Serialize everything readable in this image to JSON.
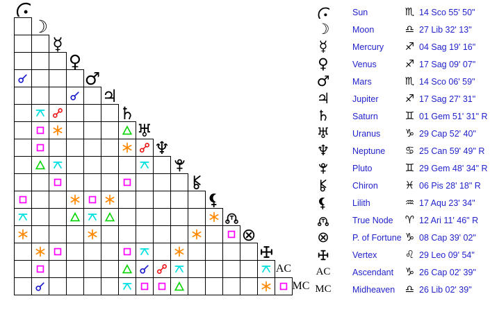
{
  "chart_data": {
    "type": "table",
    "title": "Astrological aspect grid (aspectarian) with planetary positions",
    "layout": "lower-triangular aspect matrix; rows/columns ordered as planets list; diagonal shows planet glyphs",
    "planets": [
      {
        "name": "Sun",
        "glyph_type": "svg",
        "glyph": "sun",
        "sign": "Sco",
        "sign_glyph": "♏",
        "position": "14 Sco 55' 50\""
      },
      {
        "name": "Moon",
        "glyph_type": "char",
        "glyph": "☽",
        "sign": "Lib",
        "sign_glyph": "♎",
        "position": "27 Lib 32' 13\""
      },
      {
        "name": "Mercury",
        "glyph_type": "char",
        "glyph": "☿",
        "sign": "Sag",
        "sign_glyph": "♐",
        "position": "04 Sag 19' 16\""
      },
      {
        "name": "Venus",
        "glyph_type": "char",
        "glyph": "♀",
        "sign": "Sag",
        "sign_glyph": "♐",
        "position": "17 Sag 09' 07\""
      },
      {
        "name": "Mars",
        "glyph_type": "char",
        "glyph": "♂",
        "sign": "Sco",
        "sign_glyph": "♏",
        "position": "14 Sco 06' 59\""
      },
      {
        "name": "Jupiter",
        "glyph_type": "char",
        "glyph": "♃",
        "sign": "Sag",
        "sign_glyph": "♐",
        "position": "17 Sag 27' 31\""
      },
      {
        "name": "Saturn",
        "glyph_type": "char",
        "glyph": "♄",
        "sign": "Gem",
        "sign_glyph": "♊",
        "position": "01 Gem 51' 31\" R"
      },
      {
        "name": "Uranus",
        "glyph_type": "char",
        "glyph": "♅",
        "sign": "Cap",
        "sign_glyph": "♑",
        "position": "29 Cap 52' 40\""
      },
      {
        "name": "Neptune",
        "glyph_type": "char",
        "glyph": "♆",
        "sign": "Can",
        "sign_glyph": "♋",
        "position": "25 Can 59' 49\" R"
      },
      {
        "name": "Pluto",
        "glyph_type": "svg",
        "glyph": "pluto",
        "sign": "Gem",
        "sign_glyph": "♊",
        "position": "29 Gem 48' 34\" R"
      },
      {
        "name": "Chiron",
        "glyph_type": "svg",
        "glyph": "chiron",
        "sign": "Pis",
        "sign_glyph": "♓",
        "position": "06 Pis 28' 18\" R"
      },
      {
        "name": "Lilith",
        "glyph_type": "svg",
        "glyph": "lilith",
        "sign": "Aqu",
        "sign_glyph": "♒",
        "position": "17 Aqu 23' 34\""
      },
      {
        "name": "True Node",
        "glyph_type": "svg",
        "glyph": "truenode",
        "sign": "Ari",
        "sign_glyph": "♈",
        "position": "12 Ari 11' 46\" R"
      },
      {
        "name": "P. of Fortune",
        "glyph_type": "char",
        "glyph": "⊗",
        "sign": "Cap",
        "sign_glyph": "♑",
        "position": "08 Cap 39' 02\""
      },
      {
        "name": "Vertex",
        "glyph_type": "svg",
        "glyph": "vertex",
        "sign": "Leo",
        "sign_glyph": "♌",
        "position": "29 Leo 09' 54\""
      },
      {
        "name": "Ascendant",
        "glyph_type": "text",
        "glyph": "AC",
        "sign": "Cap",
        "sign_glyph": "♑",
        "position": "26 Cap 02' 39\""
      },
      {
        "name": "Midheaven",
        "glyph_type": "text",
        "glyph": "MC",
        "sign": "Lib",
        "sign_glyph": "♎",
        "position": "26 Lib 02' 39\""
      }
    ],
    "aspect_types": {
      "conjunction": {
        "color": "#1a1acc"
      },
      "opposition": {
        "color": "#ee1111"
      },
      "square": {
        "color": "#ff00ff"
      },
      "trine": {
        "color": "#00d500"
      },
      "sextile": {
        "color": "#ff8800"
      },
      "quincunx": {
        "color": "#00e0e0"
      }
    },
    "aspects": [
      {
        "row": "Mars",
        "col": "Sun",
        "type": "conjunction"
      },
      {
        "row": "Jupiter",
        "col": "Venus",
        "type": "conjunction"
      },
      {
        "row": "Saturn",
        "col": "Moon",
        "type": "quincunx"
      },
      {
        "row": "Saturn",
        "col": "Mercury",
        "type": "opposition"
      },
      {
        "row": "Uranus",
        "col": "Moon",
        "type": "square"
      },
      {
        "row": "Uranus",
        "col": "Mercury",
        "type": "sextile"
      },
      {
        "row": "Uranus",
        "col": "Saturn",
        "type": "trine"
      },
      {
        "row": "Neptune",
        "col": "Moon",
        "type": "square"
      },
      {
        "row": "Neptune",
        "col": "Saturn",
        "type": "sextile"
      },
      {
        "row": "Neptune",
        "col": "Uranus",
        "type": "opposition"
      },
      {
        "row": "Pluto",
        "col": "Moon",
        "type": "trine"
      },
      {
        "row": "Pluto",
        "col": "Mercury",
        "type": "quincunx"
      },
      {
        "row": "Pluto",
        "col": "Uranus",
        "type": "quincunx"
      },
      {
        "row": "Chiron",
        "col": "Mercury",
        "type": "square"
      },
      {
        "row": "Chiron",
        "col": "Saturn",
        "type": "square"
      },
      {
        "row": "Lilith",
        "col": "Sun",
        "type": "square"
      },
      {
        "row": "Lilith",
        "col": "Venus",
        "type": "sextile"
      },
      {
        "row": "Lilith",
        "col": "Mars",
        "type": "square"
      },
      {
        "row": "Lilith",
        "col": "Jupiter",
        "type": "sextile"
      },
      {
        "row": "True Node",
        "col": "Sun",
        "type": "quincunx"
      },
      {
        "row": "True Node",
        "col": "Venus",
        "type": "trine"
      },
      {
        "row": "True Node",
        "col": "Mars",
        "type": "quincunx"
      },
      {
        "row": "True Node",
        "col": "Jupiter",
        "type": "trine"
      },
      {
        "row": "True Node",
        "col": "Lilith",
        "type": "sextile"
      },
      {
        "row": "P. of Fortune",
        "col": "Sun",
        "type": "sextile"
      },
      {
        "row": "P. of Fortune",
        "col": "Mars",
        "type": "sextile"
      },
      {
        "row": "P. of Fortune",
        "col": "Chiron",
        "type": "sextile"
      },
      {
        "row": "P. of Fortune",
        "col": "True Node",
        "type": "square"
      },
      {
        "row": "Vertex",
        "col": "Moon",
        "type": "sextile"
      },
      {
        "row": "Vertex",
        "col": "Mercury",
        "type": "square"
      },
      {
        "row": "Vertex",
        "col": "Saturn",
        "type": "square"
      },
      {
        "row": "Vertex",
        "col": "Uranus",
        "type": "quincunx"
      },
      {
        "row": "Vertex",
        "col": "Pluto",
        "type": "sextile"
      },
      {
        "row": "Ascendant",
        "col": "Moon",
        "type": "square"
      },
      {
        "row": "Ascendant",
        "col": "Saturn",
        "type": "trine"
      },
      {
        "row": "Ascendant",
        "col": "Uranus",
        "type": "conjunction"
      },
      {
        "row": "Ascendant",
        "col": "Neptune",
        "type": "opposition"
      },
      {
        "row": "Ascendant",
        "col": "Pluto",
        "type": "quincunx"
      },
      {
        "row": "Ascendant",
        "col": "Vertex",
        "type": "quincunx"
      },
      {
        "row": "Midheaven",
        "col": "Moon",
        "type": "conjunction"
      },
      {
        "row": "Midheaven",
        "col": "Saturn",
        "type": "quincunx"
      },
      {
        "row": "Midheaven",
        "col": "Uranus",
        "type": "square"
      },
      {
        "row": "Midheaven",
        "col": "Neptune",
        "type": "square"
      },
      {
        "row": "Midheaven",
        "col": "Pluto",
        "type": "trine"
      },
      {
        "row": "Midheaven",
        "col": "Vertex",
        "type": "sextile"
      },
      {
        "row": "Midheaven",
        "col": "Ascendant",
        "type": "square"
      }
    ]
  },
  "colors": {
    "background": "#ffffff",
    "grid_line": "#000000",
    "glyph_black": "#000000",
    "text_blue": "#2222cc"
  }
}
